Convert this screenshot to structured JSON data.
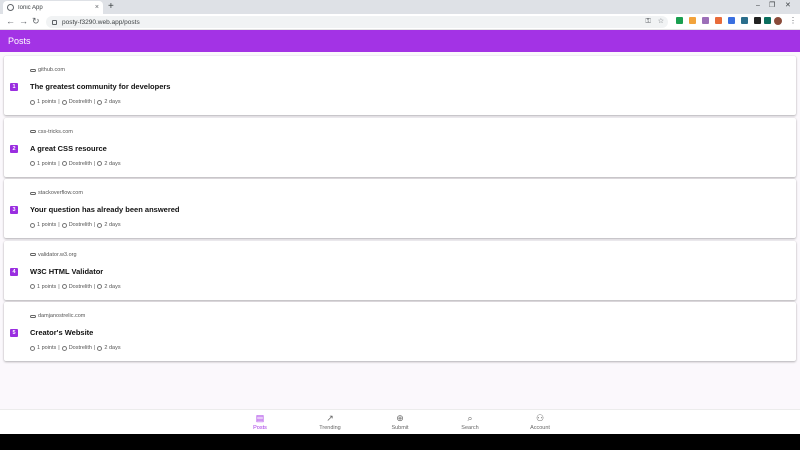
{
  "browser": {
    "tab_title": "Ionic App",
    "tab_close": "×",
    "new_tab": "+",
    "url": "posty-f3290.web.app/posts",
    "window_controls": [
      "–",
      "❐",
      "✕"
    ],
    "extension_colors": [
      "#1a9f50",
      "#f2a33c",
      "#9c6fb8",
      "#e86b3a",
      "#3a6fe0",
      "#2b6e8c",
      "#222222",
      "#0a6e5e",
      "#222222"
    ]
  },
  "app": {
    "header_title": "Posts",
    "accent_color": "#a333e5",
    "posts": [
      {
        "rank": "1",
        "domain": "github.com",
        "title": "The greatest community for developers",
        "points": "1 points",
        "author": "Dostrelith",
        "age": "2 days"
      },
      {
        "rank": "2",
        "domain": "css-tricks.com",
        "title": "A great CSS resource",
        "points": "1 points",
        "author": "Dostrelith",
        "age": "2 days"
      },
      {
        "rank": "3",
        "domain": "stackoverflow.com",
        "title": "Your question has already been answered",
        "points": "1 points",
        "author": "Dostrelith",
        "age": "2 days"
      },
      {
        "rank": "4",
        "domain": "validator.w3.org",
        "title": "W3C HTML Validator",
        "points": "1 points",
        "author": "Dostrelith",
        "age": "2 days"
      },
      {
        "rank": "5",
        "domain": "damjanostrelic.com",
        "title": "Creator's Website",
        "points": "1 points",
        "author": "Dostrelith",
        "age": "2 days"
      }
    ],
    "tabs": [
      {
        "label": "Posts",
        "icon": "document-icon",
        "active": true
      },
      {
        "label": "Trending",
        "icon": "trending-icon",
        "active": false
      },
      {
        "label": "Submit",
        "icon": "add-circle-icon",
        "active": false
      },
      {
        "label": "Search",
        "icon": "search-icon",
        "active": false
      },
      {
        "label": "Account",
        "icon": "person-icon",
        "active": false
      }
    ]
  }
}
